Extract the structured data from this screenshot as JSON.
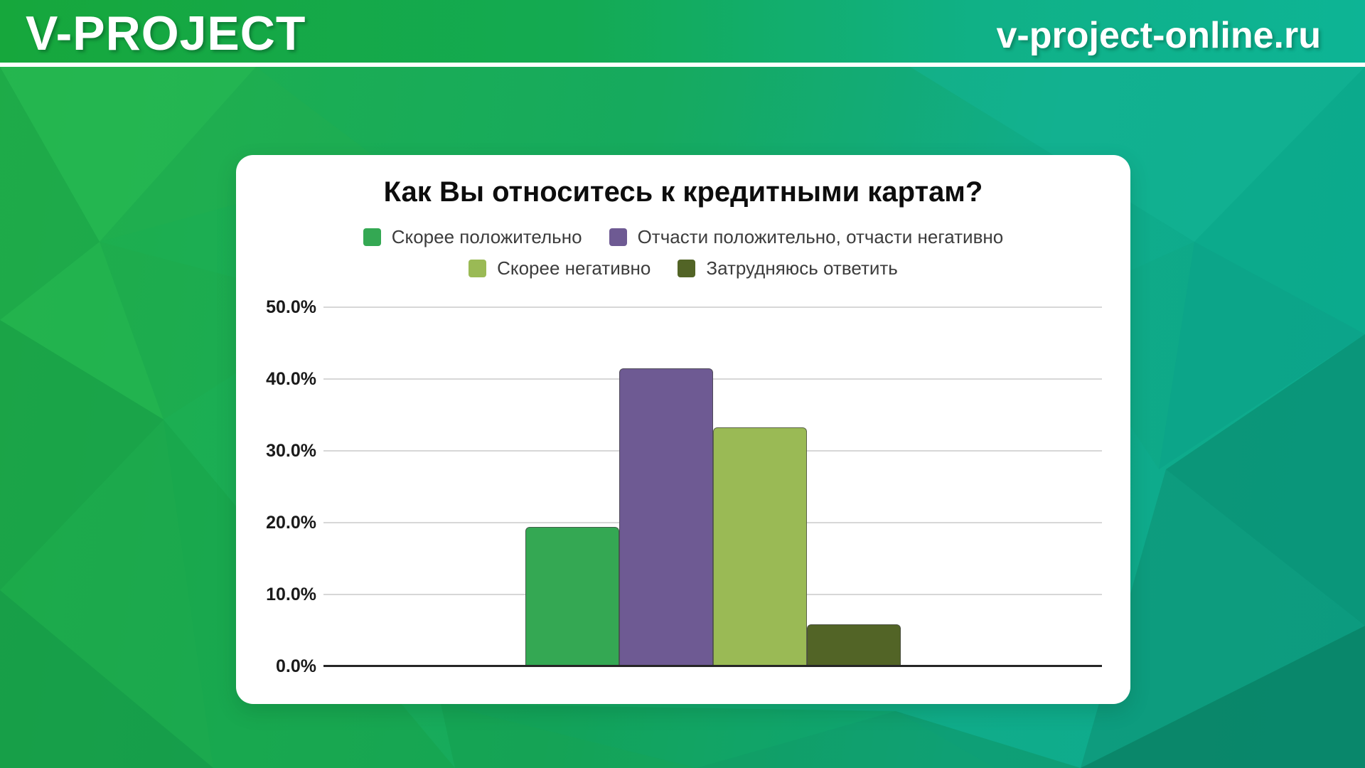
{
  "header": {
    "logo": "V-PROJECT",
    "site": "v-project-online.ru"
  },
  "colors": {
    "header_green": "#16a73c",
    "header_teal": "#0db495",
    "card_background": "#ffffff",
    "gridline": "#d7d7d7",
    "axis_line": "#262626"
  },
  "chart_data": {
    "type": "bar",
    "title": "Как Вы относитесь к кредитными картам?",
    "categories": [
      "Скорее положительно",
      "Отчасти положительно, отчасти негативно",
      "Скорее негативно",
      "Затрудняюсь ответить"
    ],
    "values": [
      19.4,
      41.5,
      33.3,
      5.8
    ],
    "unit": "%",
    "colors": [
      "#34a853",
      "#6e5a93",
      "#9aba55",
      "#526426"
    ],
    "xlabel": "",
    "ylabel": "",
    "ylim": [
      0,
      50
    ],
    "ytick_labels": [
      "50.0%",
      "40.0%",
      "30.0%",
      "20.0%",
      "10.0%",
      "0.0%"
    ],
    "ytick_values": [
      50,
      40,
      30,
      20,
      10,
      0
    ],
    "grid": true,
    "legend_position": "top",
    "legend_rows": [
      [
        0,
        1
      ],
      [
        2,
        3
      ]
    ]
  }
}
